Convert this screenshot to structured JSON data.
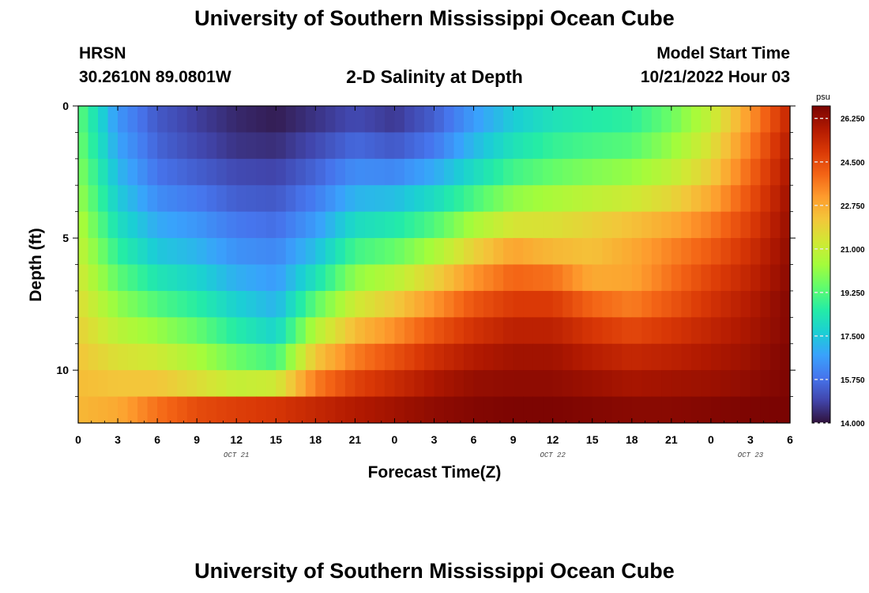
{
  "header": {
    "title": "University of Southern Mississippi Ocean Cube",
    "station": "HRSN",
    "coordinates": "30.2610N  89.0801W",
    "subtitle": "2-D Salinity at Depth",
    "model_start_label": "Model Start Time",
    "model_start_value": "10/21/2022 Hour 03"
  },
  "footer": {
    "title": "University of Southern Mississippi Ocean Cube"
  },
  "colors": {
    "colormap": [
      "#30123b",
      "#4145ab",
      "#4675ed",
      "#39a2fc",
      "#1bcfd4",
      "#24eca6",
      "#61fc6c",
      "#a4fc3b",
      "#d1e834",
      "#f3c63a",
      "#fe9b2d",
      "#f36315",
      "#d93806",
      "#b11901",
      "#7a0402"
    ]
  },
  "chart_data": {
    "type": "heatmap",
    "title": "2-D Salinity at Depth",
    "xlabel": "Forecast Time(Z)",
    "ylabel": "Depth (ft)",
    "units": "psu",
    "x_range_hours": [
      0,
      54
    ],
    "x_tick_labels": [
      "0",
      "3",
      "6",
      "9",
      "12",
      "15",
      "18",
      "21",
      "0",
      "3",
      "6",
      "9",
      "12",
      "15",
      "18",
      "21",
      "0",
      "3",
      "6"
    ],
    "date_labels": [
      {
        "text": "OCT 21",
        "hour": 12
      },
      {
        "text": "OCT 22",
        "hour": 36
      },
      {
        "text": "OCT 23",
        "hour": 51
      }
    ],
    "y_range_ft": [
      0,
      12
    ],
    "y_tick_labels": [
      "0",
      "5",
      "10"
    ],
    "y_tick_values": [
      0,
      5,
      10
    ],
    "clim": [
      14.0,
      26.75
    ],
    "colorbar_ticks": [
      "26.250",
      "24.500",
      "22.750",
      "21.000",
      "19.250",
      "17.500",
      "15.750",
      "14.000"
    ],
    "colorbar_tick_values": [
      26.25,
      24.5,
      22.75,
      21.0,
      19.25,
      17.5,
      15.75,
      14.0
    ],
    "depths_ft": [
      0.5,
      1.5,
      2.5,
      3.5,
      4.5,
      5.5,
      6.5,
      7.5,
      8.5,
      9.5,
      10.5,
      11.5
    ],
    "hours": [
      0,
      3,
      6,
      9,
      12,
      15,
      18,
      21,
      24,
      27,
      30,
      33,
      36,
      39,
      42,
      45,
      48,
      51,
      54
    ],
    "salinity": [
      [
        19.5,
        16.5,
        15.3,
        14.8,
        14.4,
        14.2,
        14.6,
        15.0,
        14.7,
        15.4,
        16.6,
        17.6,
        18.2,
        18.5,
        18.7,
        19.6,
        21.0,
        23.2,
        25.5
      ],
      [
        19.7,
        16.8,
        15.5,
        15.0,
        14.6,
        14.5,
        15.0,
        15.6,
        15.3,
        15.9,
        17.2,
        18.2,
        18.8,
        19.1,
        19.3,
        20.2,
        21.5,
        23.6,
        25.8
      ],
      [
        20.0,
        17.2,
        15.8,
        15.4,
        15.0,
        14.9,
        15.5,
        16.3,
        16.2,
        16.9,
        18.0,
        19.0,
        19.5,
        19.9,
        20.2,
        20.9,
        22.0,
        24.0,
        26.0
      ],
      [
        20.3,
        17.6,
        16.3,
        15.9,
        15.4,
        15.3,
        16.0,
        17.1,
        17.3,
        18.0,
        19.1,
        20.1,
        20.5,
        20.9,
        21.2,
        21.8,
        22.8,
        24.4,
        26.2
      ],
      [
        20.7,
        18.1,
        16.9,
        16.5,
        15.9,
        15.7,
        16.6,
        18.0,
        18.4,
        19.2,
        20.5,
        21.4,
        21.5,
        21.9,
        22.3,
        22.8,
        23.6,
        24.8,
        26.3
      ],
      [
        21.0,
        18.7,
        17.5,
        17.1,
        16.4,
        16.2,
        17.3,
        19.0,
        19.5,
        20.5,
        21.9,
        22.9,
        22.5,
        22.3,
        22.8,
        23.5,
        24.2,
        25.2,
        26.4
      ],
      [
        21.3,
        19.4,
        18.3,
        17.8,
        17.0,
        16.6,
        18.2,
        20.1,
        20.8,
        21.9,
        23.2,
        24.0,
        23.8,
        22.8,
        22.9,
        23.8,
        24.7,
        25.5,
        26.5
      ],
      [
        21.6,
        20.1,
        19.2,
        18.6,
        17.7,
        17.1,
        19.4,
        21.2,
        22.1,
        23.2,
        24.3,
        24.9,
        24.9,
        24.0,
        23.6,
        24.3,
        25.1,
        25.8,
        26.6
      ],
      [
        21.9,
        20.8,
        20.2,
        19.5,
        18.5,
        17.8,
        20.7,
        22.4,
        23.3,
        24.3,
        25.1,
        25.6,
        25.6,
        25.0,
        24.6,
        25.0,
        25.5,
        26.0,
        26.6
      ],
      [
        22.2,
        21.5,
        21.2,
        20.5,
        19.6,
        19.0,
        22.2,
        23.6,
        24.4,
        25.2,
        25.8,
        26.1,
        26.1,
        25.7,
        25.4,
        25.6,
        25.9,
        26.2,
        26.7
      ],
      [
        22.4,
        22.2,
        22.2,
        21.6,
        21.0,
        21.2,
        23.6,
        24.7,
        25.3,
        25.9,
        26.3,
        26.4,
        26.4,
        26.2,
        26.0,
        26.1,
        26.2,
        26.4,
        26.7
      ],
      [
        22.5,
        22.8,
        23.8,
        24.5,
        24.8,
        25.0,
        25.4,
        25.8,
        26.1,
        26.4,
        26.6,
        26.7,
        26.7,
        26.6,
        26.5,
        26.5,
        26.6,
        26.7,
        26.75
      ]
    ]
  }
}
